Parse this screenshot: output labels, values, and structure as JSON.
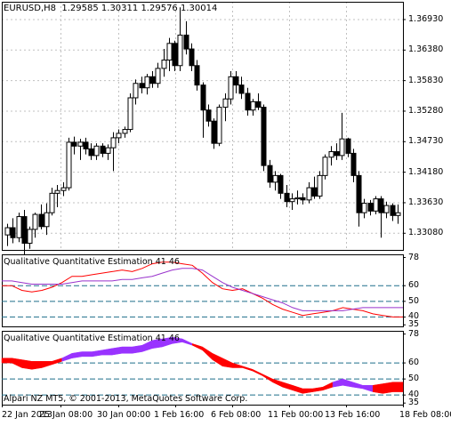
{
  "symbol": "EURUSD,H8",
  "ohlc": "1.29585 1.30311 1.29576 1.30014",
  "indicator_labels": [
    "Qualitative Quantitative Estimation 41 46",
    "Qualitative Quantitative Estimation 41 46"
  ],
  "copyright": "Alpari NZ MT5, © 2001-2013, MetaQuotes Software Corp.",
  "colors": {
    "background": "#ffffff",
    "frame": "#000000",
    "grid": "#c0c0c0",
    "rsi_line": "#ff0000",
    "signal_line": "#9933cc",
    "level_line": "#1f6f8b",
    "band_bear": "#ff0000",
    "band_bull": "#9933ff"
  },
  "chart_data": [
    {
      "type": "candlestick",
      "title": "EURUSD,H8",
      "x": [
        "22 Jan 2013",
        "25 Jan 08:00",
        "30 Jan 00:00",
        "1 Feb 16:00",
        "6 Feb 08:00",
        "11 Feb 00:00",
        "13 Feb 16:00",
        "18 Feb 08:00"
      ],
      "y_ticks": [
        "1.36930",
        "1.36380",
        "1.35830",
        "1.35280",
        "1.34730",
        "1.34180",
        "1.33630",
        "1.33080"
      ],
      "ylim": [
        1.3278,
        1.3725
      ],
      "candles": [
        [
          1.3305,
          1.3325,
          1.3285,
          1.3318
        ],
        [
          1.3318,
          1.3335,
          1.329,
          1.33
        ],
        [
          1.33,
          1.3345,
          1.3292,
          1.3338
        ],
        [
          1.3338,
          1.335,
          1.327,
          1.329
        ],
        [
          1.329,
          1.332,
          1.328,
          1.3315
        ],
        [
          1.3315,
          1.3345,
          1.33,
          1.3342
        ],
        [
          1.3342,
          1.336,
          1.3315,
          1.332
        ],
        [
          1.332,
          1.3362,
          1.3305,
          1.3345
        ],
        [
          1.3345,
          1.339,
          1.334,
          1.338
        ],
        [
          1.338,
          1.3395,
          1.3355,
          1.3385
        ],
        [
          1.3385,
          1.34,
          1.3375,
          1.339
        ],
        [
          1.339,
          1.348,
          1.3385,
          1.3472
        ],
        [
          1.3472,
          1.3482,
          1.345,
          1.3465
        ],
        [
          1.3465,
          1.3478,
          1.344,
          1.3472
        ],
        [
          1.3472,
          1.348,
          1.345,
          1.346
        ],
        [
          1.346,
          1.347,
          1.344,
          1.3448
        ],
        [
          1.3448,
          1.347,
          1.344,
          1.3465
        ],
        [
          1.3465,
          1.347,
          1.3445,
          1.3452
        ],
        [
          1.3452,
          1.3468,
          1.344,
          1.3462
        ],
        [
          1.3462,
          1.349,
          1.342,
          1.348
        ],
        [
          1.348,
          1.3495,
          1.347,
          1.3488
        ],
        [
          1.3488,
          1.35,
          1.348,
          1.3495
        ],
        [
          1.3495,
          1.356,
          1.349,
          1.3552
        ],
        [
          1.3552,
          1.3585,
          1.354,
          1.3578
        ],
        [
          1.3578,
          1.359,
          1.356,
          1.357
        ],
        [
          1.357,
          1.3595,
          1.3558,
          1.359
        ],
        [
          1.359,
          1.36,
          1.357,
          1.3578
        ],
        [
          1.3578,
          1.3615,
          1.357,
          1.3605
        ],
        [
          1.3605,
          1.364,
          1.359,
          1.362
        ],
        [
          1.362,
          1.366,
          1.36,
          1.365
        ],
        [
          1.365,
          1.3655,
          1.36,
          1.361
        ],
        [
          1.361,
          1.3715,
          1.36,
          1.3665
        ],
        [
          1.3665,
          1.369,
          1.363,
          1.364
        ],
        [
          1.364,
          1.365,
          1.36,
          1.361
        ],
        [
          1.361,
          1.362,
          1.3565,
          1.3575
        ],
        [
          1.3575,
          1.358,
          1.348,
          1.353
        ],
        [
          1.353,
          1.354,
          1.35,
          1.351
        ],
        [
          1.351,
          1.3515,
          1.346,
          1.347
        ],
        [
          1.347,
          1.354,
          1.3465,
          1.3535
        ],
        [
          1.3535,
          1.356,
          1.351,
          1.355
        ],
        [
          1.355,
          1.36,
          1.354,
          1.359
        ],
        [
          1.359,
          1.36,
          1.356,
          1.3575
        ],
        [
          1.3575,
          1.359,
          1.355,
          1.356
        ],
        [
          1.356,
          1.357,
          1.352,
          1.353
        ],
        [
          1.353,
          1.355,
          1.352,
          1.3545
        ],
        [
          1.3545,
          1.356,
          1.353,
          1.3535
        ],
        [
          1.3535,
          1.354,
          1.342,
          1.343
        ],
        [
          1.343,
          1.344,
          1.339,
          1.34
        ],
        [
          1.34,
          1.342,
          1.3385,
          1.3412
        ],
        [
          1.3412,
          1.3415,
          1.337,
          1.338
        ],
        [
          1.338,
          1.3395,
          1.3355,
          1.3365
        ],
        [
          1.3365,
          1.338,
          1.335,
          1.337
        ],
        [
          1.337,
          1.3385,
          1.336,
          1.3372
        ],
        [
          1.3372,
          1.338,
          1.336,
          1.3368
        ],
        [
          1.3368,
          1.34,
          1.3362,
          1.339
        ],
        [
          1.339,
          1.341,
          1.337,
          1.3375
        ],
        [
          1.3375,
          1.342,
          1.337,
          1.3412
        ],
        [
          1.3412,
          1.345,
          1.3405,
          1.3445
        ],
        [
          1.3445,
          1.3465,
          1.343,
          1.3455
        ],
        [
          1.3455,
          1.347,
          1.344,
          1.3448
        ],
        [
          1.3448,
          1.3525,
          1.344,
          1.3478
        ],
        [
          1.3478,
          1.348,
          1.3445,
          1.3452
        ],
        [
          1.3452,
          1.346,
          1.34,
          1.3412
        ],
        [
          1.3412,
          1.342,
          1.332,
          1.3345
        ],
        [
          1.3345,
          1.337,
          1.3335,
          1.3362
        ],
        [
          1.3362,
          1.3368,
          1.334,
          1.3348
        ],
        [
          1.3348,
          1.3375,
          1.3342,
          1.337
        ],
        [
          1.337,
          1.3375,
          1.33,
          1.3345
        ],
        [
          1.3345,
          1.3365,
          1.3335,
          1.3358
        ],
        [
          1.3358,
          1.3362,
          1.333,
          1.334
        ],
        [
          1.334,
          1.336,
          1.3325,
          1.3345
        ]
      ]
    },
    {
      "type": "line",
      "title": "Qualitative Quantitative Estimation 41 46",
      "y_ticks": [
        "78",
        "60",
        "50",
        "40",
        "35"
      ],
      "ylim": [
        34,
        80
      ],
      "levels": [
        60,
        50,
        40
      ],
      "series": [
        {
          "values": [
            60,
            60,
            57,
            56,
            57,
            59,
            62,
            66,
            66,
            67,
            68,
            69,
            70,
            69,
            71,
            74,
            75,
            75,
            74,
            73,
            68,
            62,
            58,
            57,
            58,
            55,
            52,
            48,
            45,
            43,
            41,
            42,
            43,
            44,
            46,
            45,
            44,
            42,
            41,
            40,
            40
          ]
        },
        {
          "values": [
            63,
            63,
            62,
            61,
            61,
            61,
            61,
            62,
            63,
            63,
            63,
            63,
            64,
            64,
            65,
            66,
            68,
            70,
            71,
            71,
            70,
            66,
            62,
            59,
            57,
            55,
            53,
            51,
            49,
            46,
            44,
            44,
            44,
            44,
            44,
            45,
            46,
            46,
            46,
            46,
            46
          ]
        }
      ]
    },
    {
      "type": "area",
      "title": "Qualitative Quantitative Estimation 41 46",
      "y_ticks": [
        "78",
        "60",
        "50",
        "40",
        "35"
      ],
      "ylim": [
        34,
        80
      ],
      "levels": [
        60,
        50,
        40
      ],
      "upper": [
        63,
        63,
        62,
        61,
        61,
        61,
        63,
        66,
        67,
        67,
        68,
        69,
        70,
        70,
        71,
        74,
        75,
        76,
        75,
        72,
        70,
        66,
        63,
        60,
        58,
        56,
        53,
        50,
        48,
        46,
        44,
        44,
        45,
        48,
        50,
        48,
        46,
        46,
        47,
        48,
        48
      ],
      "lower": [
        60,
        60,
        57,
        56,
        57,
        59,
        61,
        63,
        64,
        64,
        65,
        65,
        66,
        66,
        67,
        69,
        70,
        72,
        73,
        71,
        68,
        62,
        58,
        57,
        57,
        55,
        52,
        48,
        45,
        43,
        41,
        42,
        43,
        45,
        46,
        45,
        44,
        42,
        41,
        42,
        42
      ],
      "bull": [
        0,
        0,
        0,
        0,
        0,
        0,
        1,
        1,
        1,
        1,
        1,
        1,
        1,
        1,
        1,
        1,
        1,
        1,
        1,
        0,
        0,
        0,
        0,
        0,
        0,
        0,
        0,
        0,
        0,
        0,
        0,
        0,
        0,
        1,
        1,
        1,
        1,
        0,
        0,
        0,
        0
      ]
    }
  ],
  "x_labels": [
    "22 Jan 2013",
    "25 Jan 08:00",
    "30 Jan 00:00",
    "1 Feb 16:00",
    "6 Feb 08:00",
    "11 Feb 00:00",
    "13 Feb 16:00",
    "18 Feb 08:00"
  ],
  "main_price_ticks": [
    "1.36930",
    "1.36380",
    "1.35830",
    "1.35280",
    "1.34730",
    "1.34180",
    "1.33630",
    "1.33080"
  ],
  "osc_ticks": [
    "78",
    "60",
    "50",
    "40",
    "35"
  ]
}
